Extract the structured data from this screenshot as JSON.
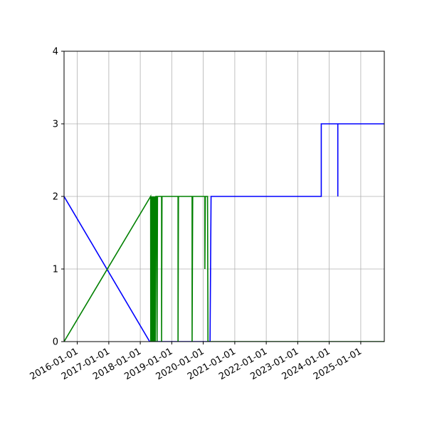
{
  "chart_data": {
    "type": "line",
    "xaxis_type": "date",
    "xlim": [
      "2015-08-01",
      "2025-10-01"
    ],
    "ylim": [
      0,
      4
    ],
    "grid": true,
    "legend": "none",
    "xticks": [
      "2016-01-01",
      "2017-01-01",
      "2018-01-01",
      "2019-01-01",
      "2020-01-01",
      "2021-01-01",
      "2022-01-01",
      "2023-01-01",
      "2024-01-01",
      "2025-01-01"
    ],
    "yticks": [
      0,
      1,
      2,
      3,
      4
    ],
    "series": [
      {
        "color": "#0000ff",
        "points": [
          [
            "2015-08-01",
            2
          ],
          [
            "2018-04-20",
            0
          ],
          [
            "2019-12-25",
            0
          ],
          [
            "2020-03-20",
            0
          ],
          [
            "2020-04-01",
            2
          ],
          [
            "2023-10-01",
            2
          ],
          [
            "2023-10-01",
            3
          ],
          [
            "2024-04-10",
            3
          ],
          [
            "2024-04-10",
            2
          ],
          [
            "2024-04-10",
            3
          ],
          [
            "2025-10-01",
            3
          ]
        ]
      },
      {
        "color": "#008000",
        "points": [
          [
            "2015-08-01",
            0
          ],
          [
            "2018-05-01",
            2
          ],
          [
            "2018-05-02",
            0
          ],
          [
            "2018-05-08",
            2
          ],
          [
            "2018-05-10",
            0
          ],
          [
            "2018-05-15",
            2
          ],
          [
            "2018-05-18",
            0
          ],
          [
            "2018-05-22",
            2
          ],
          [
            "2018-05-25",
            0
          ],
          [
            "2018-06-01",
            2
          ],
          [
            "2018-06-05",
            0
          ],
          [
            "2018-06-12",
            2
          ],
          [
            "2018-06-15",
            0
          ],
          [
            "2018-06-20",
            2
          ],
          [
            "2018-06-25",
            0
          ],
          [
            "2018-07-01",
            2
          ],
          [
            "2018-07-10",
            2
          ],
          [
            "2018-07-15",
            0
          ],
          [
            "2018-07-20",
            2
          ],
          [
            "2018-09-05",
            2
          ],
          [
            "2018-09-05",
            0
          ],
          [
            "2018-09-10",
            2
          ],
          [
            "2019-03-15",
            2
          ],
          [
            "2019-03-15",
            0
          ],
          [
            "2019-03-20",
            2
          ],
          [
            "2019-08-25",
            2
          ],
          [
            "2019-08-25",
            0
          ],
          [
            "2019-09-01",
            2
          ],
          [
            "2020-01-20",
            2
          ],
          [
            "2020-01-20",
            1
          ],
          [
            "2020-01-25",
            2
          ],
          [
            "2020-02-20",
            2
          ],
          [
            "2020-02-25",
            0
          ],
          [
            "2025-10-01",
            0
          ]
        ]
      }
    ]
  }
}
